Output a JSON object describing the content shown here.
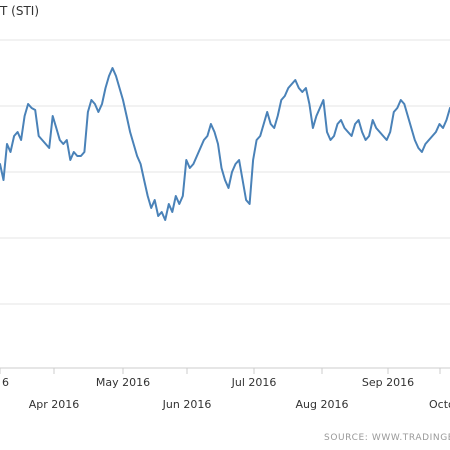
{
  "chart_data": {
    "type": "line",
    "title": "T (STI)",
    "source": "SOURCE: WWW.TRADINGECO",
    "x_ticks": [
      {
        "label": "6",
        "row": 1
      },
      {
        "label": "Apr 2016",
        "row": 2
      },
      {
        "label": "May 2016",
        "row": 1
      },
      {
        "label": "Jun 2016",
        "row": 2
      },
      {
        "label": "Jul 2016",
        "row": 1
      },
      {
        "label": "Aug 2016",
        "row": 2
      },
      {
        "label": "Sep 2016",
        "row": 1
      },
      {
        "label": "Octo",
        "row": 2
      }
    ],
    "grid": true,
    "accent_color": "#4a82b8",
    "series": [
      {
        "values": [
          2800,
          2760,
          2850,
          2830,
          2870,
          2880,
          2860,
          2920,
          2950,
          2940,
          2935,
          2870,
          2860,
          2850,
          2840,
          2920,
          2890,
          2860,
          2850,
          2860,
          2810,
          2830,
          2820,
          2820,
          2830,
          2930,
          2960,
          2950,
          2930,
          2950,
          2990,
          3020,
          3040,
          3020,
          2990,
          2960,
          2920,
          2880,
          2850,
          2820,
          2800,
          2760,
          2720,
          2690,
          2710,
          2670,
          2680,
          2660,
          2700,
          2680,
          2720,
          2700,
          2720,
          2810,
          2790,
          2800,
          2820,
          2840,
          2860,
          2870,
          2900,
          2880,
          2850,
          2790,
          2760,
          2740,
          2780,
          2800,
          2810,
          2760,
          2710,
          2700,
          2810,
          2860,
          2870,
          2900,
          2930,
          2900,
          2890,
          2920,
          2960,
          2970,
          2990,
          3000,
          3010,
          2990,
          2980,
          2990,
          2950,
          2890,
          2920,
          2940,
          2960,
          2880,
          2860,
          2870,
          2900,
          2910,
          2890,
          2880,
          2870,
          2900,
          2910,
          2880,
          2860,
          2870,
          2910,
          2890,
          2880,
          2870,
          2860,
          2880,
          2930,
          2940,
          2960,
          2950,
          2920,
          2890,
          2860,
          2840,
          2830,
          2850,
          2860,
          2870,
          2880,
          2900,
          2890,
          2910,
          2940
        ]
      }
    ]
  }
}
